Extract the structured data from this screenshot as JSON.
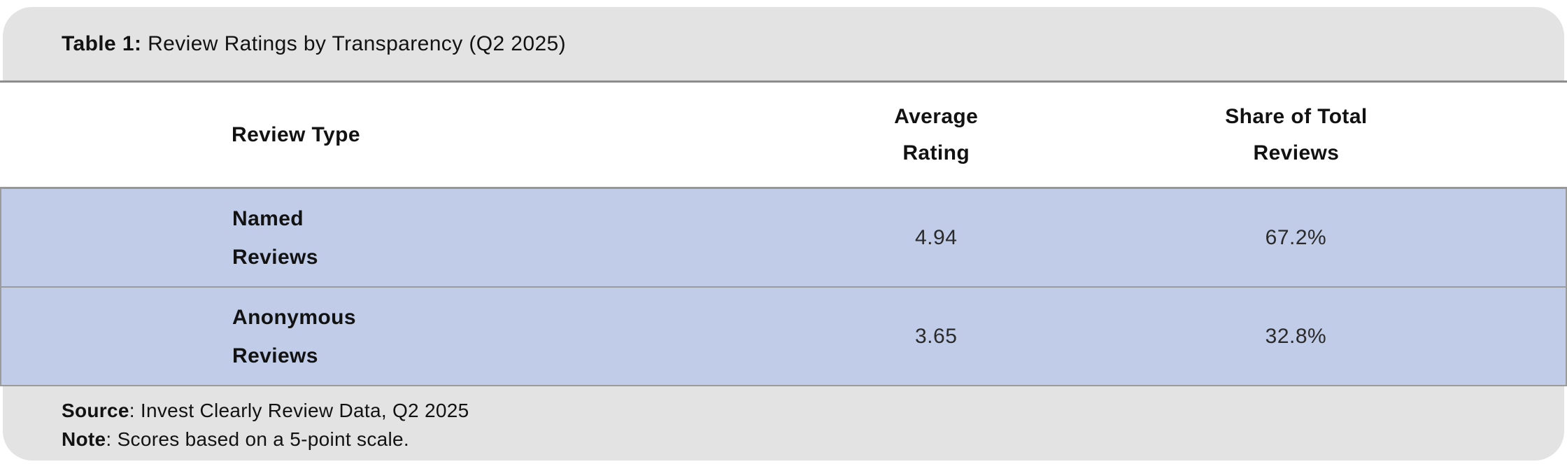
{
  "title": {
    "prefix": "Table 1:",
    "text": " Review Ratings by Transparency (Q2 2025)"
  },
  "table": {
    "headers": {
      "review_type": "Review Type",
      "average_rating": "Average\nRating",
      "share_of_total": "Share of Total\nReviews"
    },
    "rows": [
      {
        "label": "Named\nReviews",
        "rating": "4.94",
        "share": "67.2%"
      },
      {
        "label": "Anonymous\nReviews",
        "rating": "3.65",
        "share": "32.8%"
      }
    ]
  },
  "footer": {
    "source_label": "Source",
    "source_rest": ": Invest Clearly Review Data, Q2 2025",
    "note_label": "Note",
    "note_rest": ": Scores based on a 5-point scale."
  },
  "chart_data": {
    "type": "table",
    "title": "Table 1: Review Ratings by Transparency (Q2 2025)",
    "columns": [
      "Review Type",
      "Average Rating",
      "Share of Total Reviews"
    ],
    "rows": [
      {
        "review_type": "Named Reviews",
        "average_rating": 4.94,
        "share_of_total_reviews": "67.2%"
      },
      {
        "review_type": "Anonymous Reviews",
        "average_rating": 3.65,
        "share_of_total_reviews": "32.8%"
      }
    ],
    "source": "Invest Clearly Review Data, Q2 2025",
    "note": "Scores based on a 5-point scale."
  },
  "colors": {
    "row_fill": "#c0cce8",
    "banner_fill": "#e3e3e3",
    "border": "#9b9b9b",
    "rule": "#8d8d8d",
    "text": "#121212"
  }
}
